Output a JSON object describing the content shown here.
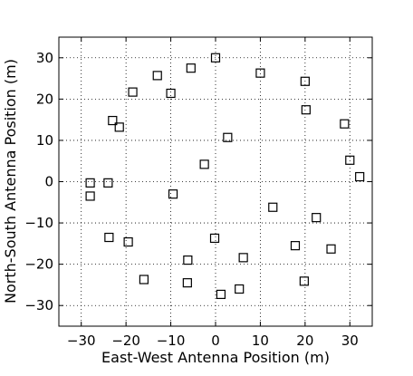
{
  "chart_data": {
    "type": "scatter",
    "xlabel": "East-West Antenna Position (m)",
    "ylabel": "North-South Antenna Position (m)",
    "xlim": [
      -35,
      35
    ],
    "ylim": [
      -35,
      35
    ],
    "xticks": [
      -30,
      -20,
      -10,
      0,
      10,
      20,
      30
    ],
    "yticks": [
      -30,
      -20,
      -10,
      0,
      10,
      20,
      30
    ],
    "xtick_labels": [
      "−30",
      "−20",
      "−10",
      "0",
      "10",
      "20",
      "30"
    ],
    "ytick_labels": [
      "−30",
      "−20",
      "−10",
      "0",
      "10",
      "20",
      "30"
    ],
    "grid": true,
    "marker": "open-square",
    "marker_color": "#000000",
    "points": [
      {
        "x": 0.0,
        "y": 30.0
      },
      {
        "x": -5.5,
        "y": 27.5
      },
      {
        "x": -13.0,
        "y": 25.7
      },
      {
        "x": 10.0,
        "y": 26.3
      },
      {
        "x": 20.0,
        "y": 24.3
      },
      {
        "x": -18.5,
        "y": 21.7
      },
      {
        "x": -10.0,
        "y": 21.4
      },
      {
        "x": 20.2,
        "y": 17.4
      },
      {
        "x": -23.0,
        "y": 14.8
      },
      {
        "x": -21.5,
        "y": 13.2
      },
      {
        "x": 28.8,
        "y": 14.0
      },
      {
        "x": 2.7,
        "y": 10.7
      },
      {
        "x": 30.0,
        "y": 5.2
      },
      {
        "x": -2.5,
        "y": 4.2
      },
      {
        "x": 32.2,
        "y": 1.2
      },
      {
        "x": -28.0,
        "y": -0.3
      },
      {
        "x": -24.0,
        "y": -0.3
      },
      {
        "x": -28.0,
        "y": -3.5
      },
      {
        "x": -9.5,
        "y": -3.0
      },
      {
        "x": 12.8,
        "y": -6.2
      },
      {
        "x": 22.5,
        "y": -8.7
      },
      {
        "x": -23.8,
        "y": -13.5
      },
      {
        "x": -19.5,
        "y": -14.6
      },
      {
        "x": -0.2,
        "y": -13.7
      },
      {
        "x": 17.8,
        "y": -15.5
      },
      {
        "x": 25.8,
        "y": -16.3
      },
      {
        "x": -6.2,
        "y": -19.0
      },
      {
        "x": 6.2,
        "y": -18.4
      },
      {
        "x": -16.0,
        "y": -23.7
      },
      {
        "x": -6.3,
        "y": -24.5
      },
      {
        "x": 19.8,
        "y": -24.1
      },
      {
        "x": 1.2,
        "y": -27.3
      },
      {
        "x": 5.3,
        "y": -26.0
      }
    ]
  }
}
